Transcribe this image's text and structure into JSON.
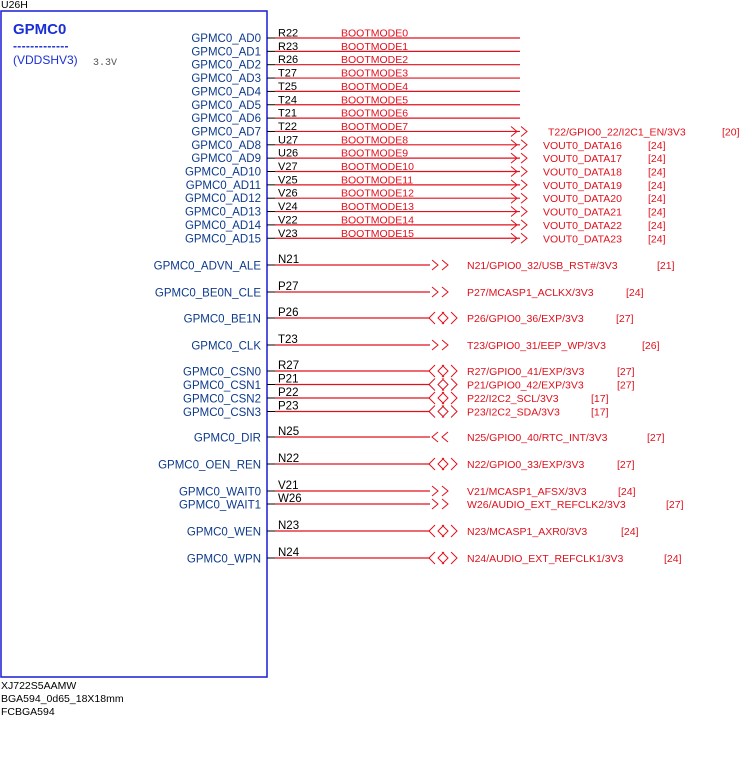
{
  "component": {
    "ref": "U26H",
    "group": "GPMC0",
    "separator": "-------------",
    "supply": "(VDDSHV3)",
    "voltage": "3.3V",
    "part_number": "XJ722S5AAMW",
    "package": "BGA594_0d65_18X18mm",
    "footprint": "FCBGA594"
  },
  "colors": {
    "box": "#1a1ad4",
    "pin_label": "#0d3a8c",
    "net": "#e0101c",
    "ball": "#000000",
    "title": "#1a2fd6"
  },
  "boot_pins": [
    {
      "name": "GPMC0_AD0",
      "ball": "R22",
      "net": "BOOTMODE0",
      "off": null,
      "page": null
    },
    {
      "name": "GPMC0_AD1",
      "ball": "R23",
      "net": "BOOTMODE1",
      "off": null,
      "page": null
    },
    {
      "name": "GPMC0_AD2",
      "ball": "R26",
      "net": "BOOTMODE2",
      "off": null,
      "page": null
    },
    {
      "name": "GPMC0_AD3",
      "ball": "T27",
      "net": "BOOTMODE3",
      "off": null,
      "page": null
    },
    {
      "name": "GPMC0_AD4",
      "ball": "T25",
      "net": "BOOTMODE4",
      "off": null,
      "page": null
    },
    {
      "name": "GPMC0_AD5",
      "ball": "T24",
      "net": "BOOTMODE5",
      "off": null,
      "page": null
    },
    {
      "name": "GPMC0_AD6",
      "ball": "T21",
      "net": "BOOTMODE6",
      "off": null,
      "page": null
    },
    {
      "name": "GPMC0_AD7",
      "ball": "T22",
      "net": "BOOTMODE7",
      "off": "T22/GPIO0_22/I2C1_EN/3V3",
      "page": "[20]"
    },
    {
      "name": "GPMC0_AD8",
      "ball": "U27",
      "net": "BOOTMODE8",
      "off": "VOUT0_DATA16",
      "page": "[24]"
    },
    {
      "name": "GPMC0_AD9",
      "ball": "U26",
      "net": "BOOTMODE9",
      "off": "VOUT0_DATA17",
      "page": "[24]"
    },
    {
      "name": "GPMC0_AD10",
      "ball": "V27",
      "net": "BOOTMODE10",
      "off": "VOUT0_DATA18",
      "page": "[24]"
    },
    {
      "name": "GPMC0_AD11",
      "ball": "V25",
      "net": "BOOTMODE11",
      "off": "VOUT0_DATA19",
      "page": "[24]"
    },
    {
      "name": "GPMC0_AD12",
      "ball": "V26",
      "net": "BOOTMODE12",
      "off": "VOUT0_DATA20",
      "page": "[24]"
    },
    {
      "name": "GPMC0_AD13",
      "ball": "V24",
      "net": "BOOTMODE13",
      "off": "VOUT0_DATA21",
      "page": "[24]"
    },
    {
      "name": "GPMC0_AD14",
      "ball": "V22",
      "net": "BOOTMODE14",
      "off": "VOUT0_DATA22",
      "page": "[24]"
    },
    {
      "name": "GPMC0_AD15",
      "ball": "V23",
      "net": "BOOTMODE15",
      "off": "VOUT0_DATA23",
      "page": "[24]"
    }
  ],
  "ctrl_pins": [
    {
      "name": "GPMC0_ADVN_ALE",
      "ball": "N21",
      "conn": "out",
      "net": "N21/GPIO0_32/USB_RST#/3V3",
      "page": "[21]"
    },
    {
      "name": "GPMC0_BE0N_CLE",
      "ball": "P27",
      "conn": "out",
      "net": "P27/MCASP1_ACLKX/3V3",
      "page": "[24]"
    },
    {
      "name": "GPMC0_BE1N",
      "ball": "P26",
      "conn": "bi",
      "net": "P26/GPIO0_36/EXP/3V3",
      "page": "[27]"
    },
    {
      "name": "GPMC0_CLK",
      "ball": "T23",
      "conn": "out",
      "net": "T23/GPIO0_31/EEP_WP/3V3",
      "page": "[26]"
    },
    {
      "name": "GPMC0_CSN0",
      "ball": "R27",
      "conn": "bi",
      "net": "R27/GPIO0_41/EXP/3V3",
      "page": "[27]"
    },
    {
      "name": "GPMC0_CSN1",
      "ball": "P21",
      "conn": "bi",
      "net": "P21/GPIO0_42/EXP/3V3",
      "page": "[27]"
    },
    {
      "name": "GPMC0_CSN2",
      "ball": "P22",
      "conn": "bi",
      "net": "P22/I2C2_SCL/3V3",
      "page": "[17]"
    },
    {
      "name": "GPMC0_CSN3",
      "ball": "P23",
      "conn": "bi",
      "net": "P23/I2C2_SDA/3V3",
      "page": "[17]"
    },
    {
      "name": "GPMC0_DIR",
      "ball": "N25",
      "conn": "in",
      "net": "N25/GPIO0_40/RTC_INT/3V3",
      "page": "[27]"
    },
    {
      "name": "GPMC0_OEN_REN",
      "ball": "N22",
      "conn": "bi",
      "net": "N22/GPIO0_33/EXP/3V3",
      "page": "[27]"
    },
    {
      "name": "GPMC0_WAIT0",
      "ball": "V21",
      "conn": "out",
      "net": "V21/MCASP1_AFSX/3V3",
      "page": "[24]"
    },
    {
      "name": "GPMC0_WAIT1",
      "ball": "W26",
      "conn": "out",
      "net": "W26/AUDIO_EXT_REFCLK2/3V3",
      "page": "[27]"
    },
    {
      "name": "GPMC0_WEN",
      "ball": "N23",
      "conn": "bi",
      "net": "N23/MCASP1_AXR0/3V3",
      "page": "[24]"
    },
    {
      "name": "GPMC0_WPN",
      "ball": "N24",
      "conn": "bi",
      "net": "N24/AUDIO_EXT_REFCLK1/3V3",
      "page": "[24]"
    }
  ]
}
